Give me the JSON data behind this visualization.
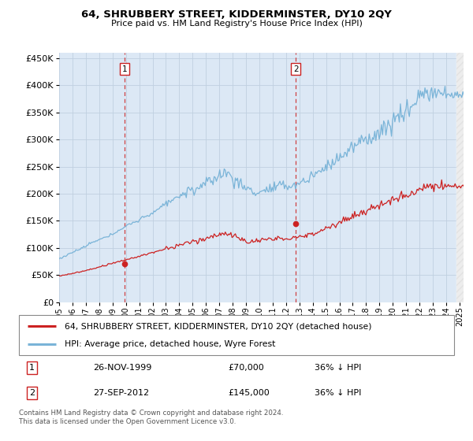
{
  "title": "64, SHRUBBERY STREET, KIDDERMINSTER, DY10 2QY",
  "subtitle": "Price paid vs. HM Land Registry's House Price Index (HPI)",
  "legend_line1": "64, SHRUBBERY STREET, KIDDERMINSTER, DY10 2QY (detached house)",
  "legend_line2": "HPI: Average price, detached house, Wyre Forest",
  "table_row1": [
    "1",
    "26-NOV-1999",
    "£70,000",
    "36% ↓ HPI"
  ],
  "table_row2": [
    "2",
    "27-SEP-2012",
    "£145,000",
    "36% ↓ HPI"
  ],
  "footnote": "Contains HM Land Registry data © Crown copyright and database right 2024.\nThis data is licensed under the Open Government Licence v3.0.",
  "sale1_date": 1999.9,
  "sale1_price": 70000,
  "sale2_date": 2012.74,
  "sale2_price": 145000,
  "hpi_color": "#7ab4d8",
  "price_color": "#cc2222",
  "vline_color": "#cc2222",
  "bg_color": "#dce8f5",
  "plot_bg": "#ffffff",
  "grid_color": "#c0d0e0",
  "ylim_max": 460000,
  "xlim_start": 1995.0,
  "xlim_end": 2025.3
}
